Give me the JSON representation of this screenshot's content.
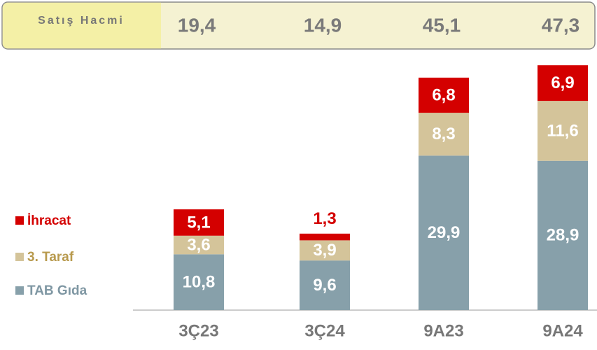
{
  "chart_data": {
    "type": "stacked_bar",
    "header": {
      "label": "Satış Hacmi",
      "values": [
        19.4,
        14.9,
        45.1,
        47.3
      ],
      "value_labels": [
        "19,4",
        "14,9",
        "45,1",
        "47,3"
      ]
    },
    "categories": [
      "3Ç23",
      "3Ç24",
      "9A23",
      "9A24"
    ],
    "series": [
      {
        "name": "TAB Gıda",
        "color": "#87a0aa",
        "legend_color": "#7f97a3",
        "values": [
          10.8,
          9.6,
          29.9,
          28.9
        ],
        "value_labels": [
          "10,8",
          "9,6",
          "29,9",
          "28,9"
        ]
      },
      {
        "name": "3. Taraf",
        "color": "#d4c49a",
        "legend_color": "#b89a4e",
        "values": [
          3.6,
          3.9,
          8.3,
          11.6
        ],
        "value_labels": [
          "3,6",
          "3,9",
          "8,3",
          "11,6"
        ]
      },
      {
        "name": "İhracat",
        "color": "#d40000",
        "legend_color": "#d40000",
        "values": [
          5.1,
          1.3,
          6.8,
          6.9
        ],
        "value_labels": [
          "5,1",
          "1,3",
          "6,8",
          "6,9"
        ]
      }
    ],
    "ylim": [
      0,
      50
    ]
  }
}
